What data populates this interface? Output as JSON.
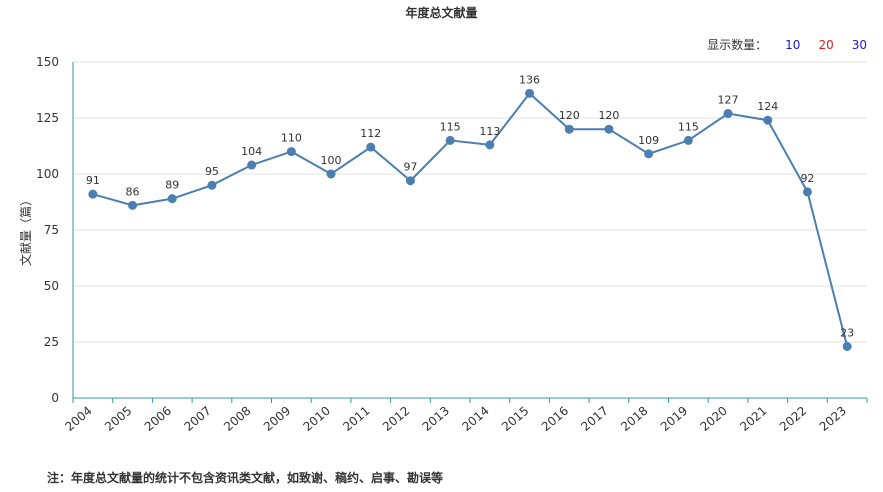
{
  "title": "年度总文献量",
  "count_control": {
    "label": "显示数量：",
    "options": [
      {
        "label": "10",
        "color": "#1a1acc"
      },
      {
        "label": "20",
        "color": "#e02020"
      },
      {
        "label": "30",
        "color": "#1a1acc"
      }
    ]
  },
  "footnote": "注：年度总文献量的统计不包含资讯类文献，如致谢、稿约、启事、勘误等",
  "colors": {
    "line": "#4a7fb0",
    "axis": "#3a9aa0",
    "grid": "#e3e3e3"
  },
  "chart_data": {
    "type": "line",
    "title": "年度总文献量",
    "ylabel": "文献量（篇）",
    "xlabel": "",
    "categories": [
      "2004",
      "2005",
      "2006",
      "2007",
      "2008",
      "2009",
      "2010",
      "2011",
      "2012",
      "2013",
      "2014",
      "2015",
      "2016",
      "2017",
      "2018",
      "2019",
      "2020",
      "2021",
      "2022",
      "2023"
    ],
    "values": [
      91,
      86,
      89,
      95,
      104,
      110,
      100,
      112,
      97,
      115,
      113,
      136,
      120,
      120,
      109,
      115,
      127,
      124,
      92,
      23
    ],
    "ylim": [
      0,
      150
    ],
    "yticks": [
      0,
      25,
      50,
      75,
      100,
      125,
      150
    ],
    "grid": true,
    "data_labels": true
  }
}
